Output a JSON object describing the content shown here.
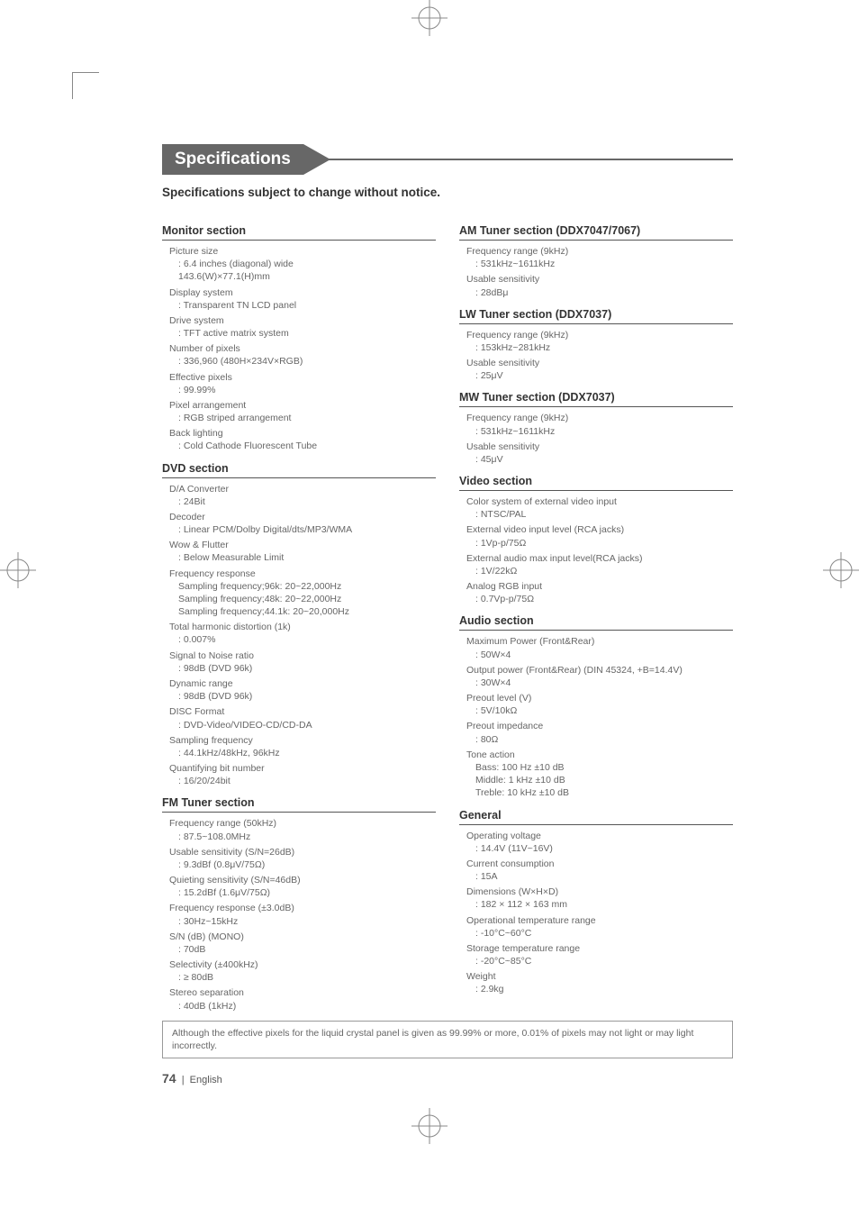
{
  "crop_color": "#888888",
  "title": "Specifications",
  "subtitle": "Specifications subject to change without notice.",
  "left": [
    {
      "h": "Monitor section",
      "items": [
        {
          "k": "Picture size",
          "v": ": 6.4 inches (diagonal) wide",
          "v2": "  143.6(W)×77.1(H)mm"
        },
        {
          "k": "Display system",
          "v": ": Transparent TN LCD panel"
        },
        {
          "k": "Drive system",
          "v": ": TFT active matrix system"
        },
        {
          "k": "Number of pixels",
          "v": ": 336,960 (480H×234V×RGB)"
        },
        {
          "k": "Effective pixels",
          "v": ": 99.99%"
        },
        {
          "k": "Pixel arrangement",
          "v": ": RGB striped arrangement"
        },
        {
          "k": "Back lighting",
          "v": ": Cold Cathode Fluorescent Tube"
        }
      ]
    },
    {
      "h": "DVD section",
      "items": [
        {
          "k": "D/A Converter",
          "v": ": 24Bit"
        },
        {
          "k": "Decoder",
          "v": ": Linear PCM/Dolby Digital/dts/MP3/WMA"
        },
        {
          "k": "Wow & Flutter",
          "v": ": Below Measurable Limit"
        },
        {
          "k": "Frequency response",
          "v": "  Sampling frequency;96k: 20~22,000Hz",
          "v2": "  Sampling frequency;48k: 20~22,000Hz",
          "v3": "  Sampling frequency;44.1k: 20~20,000Hz"
        },
        {
          "k": "Total harmonic distortion (1k)",
          "v": ": 0.007%"
        },
        {
          "k": "Signal to Noise ratio",
          "v": ": 98dB (DVD 96k)"
        },
        {
          "k": "Dynamic range",
          "v": ": 98dB (DVD 96k)"
        },
        {
          "k": "DISC Format",
          "v": ": DVD-Video/VIDEO-CD/CD-DA"
        },
        {
          "k": "Sampling frequency",
          "v": ": 44.1kHz/48kHz, 96kHz"
        },
        {
          "k": "Quantifying bit number",
          "v": ": 16/20/24bit"
        }
      ]
    },
    {
      "h": "FM Tuner section",
      "items": [
        {
          "k": "Frequency range (50kHz)",
          "v": ": 87.5~108.0MHz"
        },
        {
          "k": "Usable sensitivity (S/N=26dB)",
          "v": ": 9.3dBf (0.8μV/75Ω)"
        },
        {
          "k": "Quieting sensitivity (S/N=46dB)",
          "v": ": 15.2dBf (1.6μV/75Ω)"
        },
        {
          "k": "Frequency response (±3.0dB)",
          "v": ": 30Hz~15kHz"
        },
        {
          "k": "S/N (dB) (MONO)",
          "v": ": 70dB"
        },
        {
          "k": "Selectivity (±400kHz)",
          "v": ": ≥ 80dB"
        },
        {
          "k": "Stereo separation",
          "v": ": 40dB (1kHz)"
        }
      ]
    }
  ],
  "right": [
    {
      "h": "AM Tuner section (DDX7047/7067)",
      "items": [
        {
          "k": "Frequency range (9kHz)",
          "v": ": 531kHz~1611kHz"
        },
        {
          "k": "Usable sensitivity",
          "v": ": 28dBμ"
        }
      ]
    },
    {
      "h": "LW Tuner section (DDX7037)",
      "items": [
        {
          "k": "Frequency range (9kHz)",
          "v": ": 153kHz~281kHz"
        },
        {
          "k": "Usable sensitivity",
          "v": ": 25μV"
        }
      ]
    },
    {
      "h": "MW Tuner section (DDX7037)",
      "items": [
        {
          "k": "Frequency range (9kHz)",
          "v": ": 531kHz~1611kHz"
        },
        {
          "k": "Usable sensitivity",
          "v": ": 45μV"
        }
      ]
    },
    {
      "h": "Video section",
      "items": [
        {
          "k": "Color system of external video input",
          "v": ": NTSC/PAL"
        },
        {
          "k": "External video input level (RCA jacks)",
          "v": ": 1Vp-p/75Ω"
        },
        {
          "k": "External audio max input level(RCA jacks)",
          "v": ": 1V/22kΩ"
        },
        {
          "k": "Analog RGB input",
          "v": ": 0.7Vp-p/75Ω"
        }
      ]
    },
    {
      "h": "Audio section",
      "items": [
        {
          "k": "Maximum Power (Front&Rear)",
          "v": ": 50W×4"
        },
        {
          "k": "Output power (Front&Rear) (DIN 45324, +B=14.4V)",
          "v": ": 30W×4"
        },
        {
          "k": "Preout level (V)",
          "v": ": 5V/10kΩ"
        },
        {
          "k": "Preout impedance",
          "v": ": 80Ω"
        },
        {
          "k": "Tone action",
          "v": "  Bass: 100 Hz ±10 dB",
          "v2": "  Middle: 1 kHz ±10 dB",
          "v3": "  Treble: 10 kHz ±10 dB"
        }
      ]
    },
    {
      "h": "General",
      "items": [
        {
          "k": "Operating voltage",
          "v": ": 14.4V (11V~16V)"
        },
        {
          "k": "Current consumption",
          "v": ": 15A"
        },
        {
          "k": "Dimensions (W×H×D)",
          "v": ": 182 × 112 × 163 mm"
        },
        {
          "k": "Operational temperature range",
          "v": ": -10°C~60°C"
        },
        {
          "k": "Storage temperature range",
          "v": ": -20°C~85°C"
        },
        {
          "k": "Weight",
          "v": ": 2.9kg"
        }
      ]
    }
  ],
  "note": "Although the effective pixels for the liquid crystal panel is given as 99.99% or more, 0.01% of pixels may not light or may light incorrectly.",
  "page_num": "74",
  "page_lang": "English"
}
